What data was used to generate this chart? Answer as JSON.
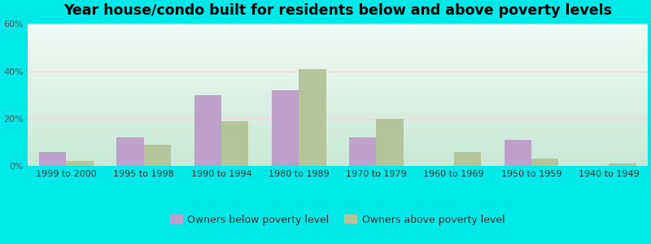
{
  "title": "Year house/condo built for residents below and above poverty levels",
  "categories": [
    "1999 to 2000",
    "1995 to 1998",
    "1990 to 1994",
    "1980 to 1989",
    "1970 to 1979",
    "1960 to 1969",
    "1950 to 1959",
    "1940 to 1949"
  ],
  "below_poverty": [
    6,
    12,
    30,
    32,
    12,
    0,
    11,
    0
  ],
  "above_poverty": [
    2,
    9,
    19,
    41,
    20,
    6,
    3,
    1
  ],
  "below_color": "#bf9fcc",
  "above_color": "#b5c499",
  "bg_top": "#e8f5ee",
  "bg_bottom": "#d4ede0",
  "outer_bg": "#00e8e8",
  "ylim": [
    0,
    60
  ],
  "yticks": [
    0,
    20,
    40,
    60
  ],
  "ytick_labels": [
    "0%",
    "20%",
    "40%",
    "60%"
  ],
  "legend_below": "Owners below poverty level",
  "legend_above": "Owners above poverty level",
  "bar_width": 0.35,
  "title_fontsize": 12.5,
  "label_fontsize": 8,
  "legend_fontsize": 9,
  "grid_color": "#d0e8d8"
}
